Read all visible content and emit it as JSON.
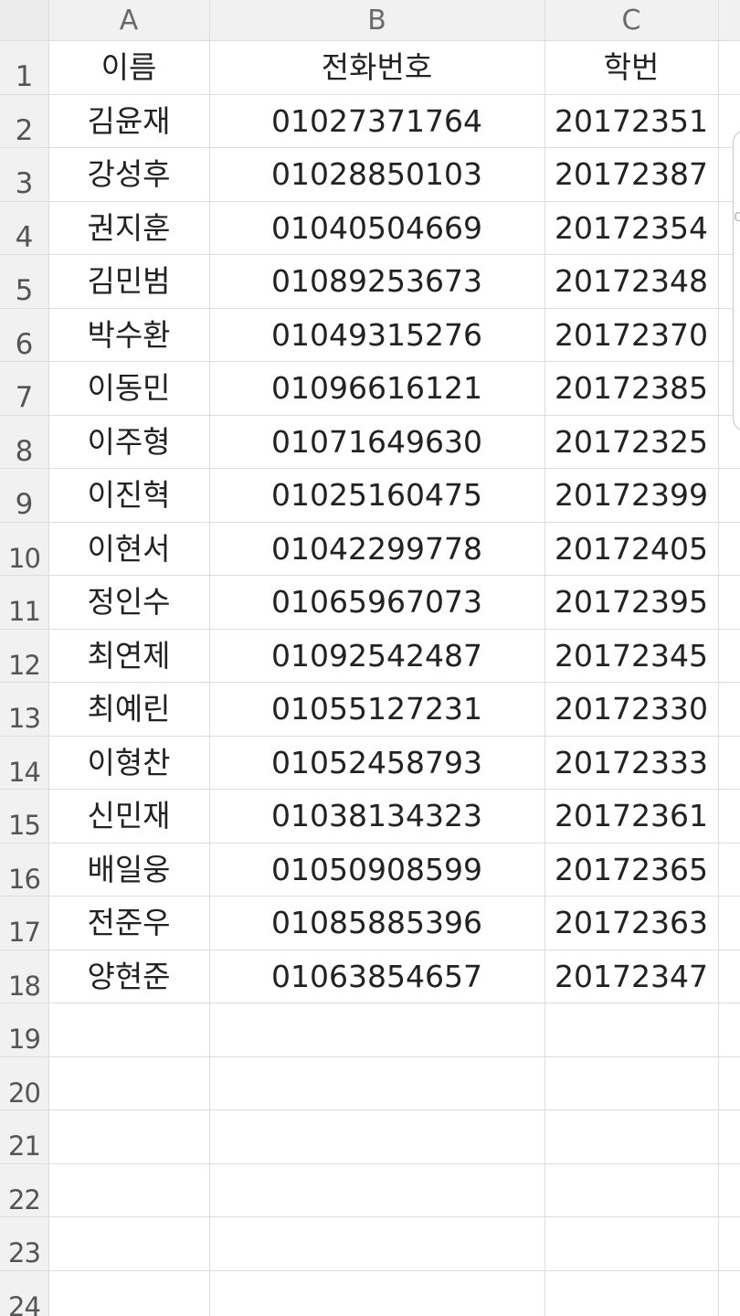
{
  "columns": [
    "A",
    "B",
    "C"
  ],
  "rows": [
    {
      "num": "1",
      "a": "이름",
      "b": "전화번호",
      "c": "학번"
    },
    {
      "num": "2",
      "a": "김윤재",
      "b": "01027371764",
      "c": "20172351"
    },
    {
      "num": "3",
      "a": "강성후",
      "b": "01028850103",
      "c": "20172387"
    },
    {
      "num": "4",
      "a": "권지훈",
      "b": "01040504669",
      "c": "20172354"
    },
    {
      "num": "5",
      "a": "김민범",
      "b": "01089253673",
      "c": "20172348"
    },
    {
      "num": "6",
      "a": "박수환",
      "b": "01049315276",
      "c": "20172370"
    },
    {
      "num": "7",
      "a": "이동민",
      "b": "01096616121",
      "c": "20172385"
    },
    {
      "num": "8",
      "a": "이주형",
      "b": "01071649630",
      "c": "20172325"
    },
    {
      "num": "9",
      "a": "이진혁",
      "b": "01025160475",
      "c": "20172399"
    },
    {
      "num": "10",
      "a": "이현서",
      "b": "01042299778",
      "c": "20172405"
    },
    {
      "num": "11",
      "a": "정인수",
      "b": "01065967073",
      "c": "20172395"
    },
    {
      "num": "12",
      "a": "최연제",
      "b": "01092542487",
      "c": "20172345"
    },
    {
      "num": "13",
      "a": "최예린",
      "b": "01055127231",
      "c": "20172330"
    },
    {
      "num": "14",
      "a": "이형찬",
      "b": "01052458793",
      "c": "20172333"
    },
    {
      "num": "15",
      "a": "신민재",
      "b": "01038134323",
      "c": "20172361"
    },
    {
      "num": "16",
      "a": "배일웅",
      "b": "01050908599",
      "c": "20172365"
    },
    {
      "num": "17",
      "a": "전준우",
      "b": "01085885396",
      "c": "20172363"
    },
    {
      "num": "18",
      "a": "양현준",
      "b": "01063854657",
      "c": "20172347"
    },
    {
      "num": "19",
      "a": "",
      "b": "",
      "c": ""
    },
    {
      "num": "20",
      "a": "",
      "b": "",
      "c": ""
    },
    {
      "num": "21",
      "a": "",
      "b": "",
      "c": ""
    },
    {
      "num": "22",
      "a": "",
      "b": "",
      "c": ""
    },
    {
      "num": "23",
      "a": "",
      "b": "",
      "c": ""
    },
    {
      "num": "24",
      "a": "",
      "b": "",
      "c": ""
    }
  ]
}
